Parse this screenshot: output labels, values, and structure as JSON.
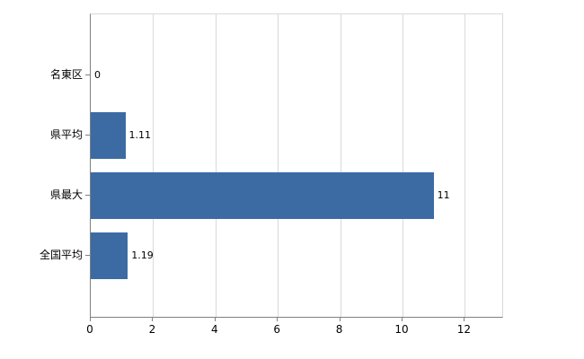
{
  "chart_data": {
    "type": "bar",
    "orientation": "horizontal",
    "title": "",
    "xlabel": "",
    "ylabel": "",
    "categories": [
      "名東区",
      "県平均",
      "県最大",
      "全国平均"
    ],
    "values": [
      0,
      1.11,
      11,
      1.19
    ],
    "value_labels": [
      "0",
      "1.11",
      "11",
      "1.19"
    ],
    "x_ticks": [
      0,
      2,
      4,
      6,
      8,
      10,
      12
    ],
    "xlim": [
      0,
      13.2
    ],
    "grid": "vertical",
    "legend": "none",
    "bar_color": "#3c6ba4",
    "grid_color": "#d9d9d9",
    "axis_color": "#808080",
    "background_color": "#ffffff"
  }
}
